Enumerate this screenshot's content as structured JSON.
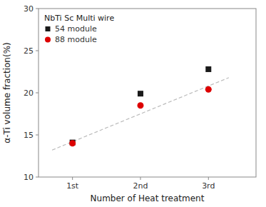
{
  "chart_data": {
    "type": "scatter",
    "x_label": "Number of Heat treatment",
    "y_label": "α-Ti volume fraction(%)",
    "xlim": [
      0.5,
      3.7
    ],
    "xticks": [
      {
        "value": 1,
        "label": "1st"
      },
      {
        "value": 2,
        "label": "2nd"
      },
      {
        "value": 3,
        "label": "3rd"
      }
    ],
    "ylim": [
      10,
      30
    ],
    "yticks": [
      10,
      15,
      20,
      25,
      30
    ],
    "grid": false,
    "legend": "upper-left",
    "legend_title": "NbTi Sc Multi wire",
    "series": [
      {
        "type": "line",
        "line_style": "dashed",
        "color": "#bbbbbb",
        "x": [
          0.7,
          3.3
        ],
        "values": [
          13.2,
          21.8
        ]
      },
      {
        "name": "54 module",
        "color": "#1a1a1a",
        "marker": "square",
        "x": [
          1,
          2,
          3
        ],
        "values": [
          14.1,
          19.9,
          22.8
        ]
      },
      {
        "name": "88 module",
        "color": "#dd0000",
        "marker": "circle",
        "x": [
          1,
          2,
          3
        ],
        "values": [
          14.0,
          18.5,
          20.4
        ]
      }
    ]
  }
}
